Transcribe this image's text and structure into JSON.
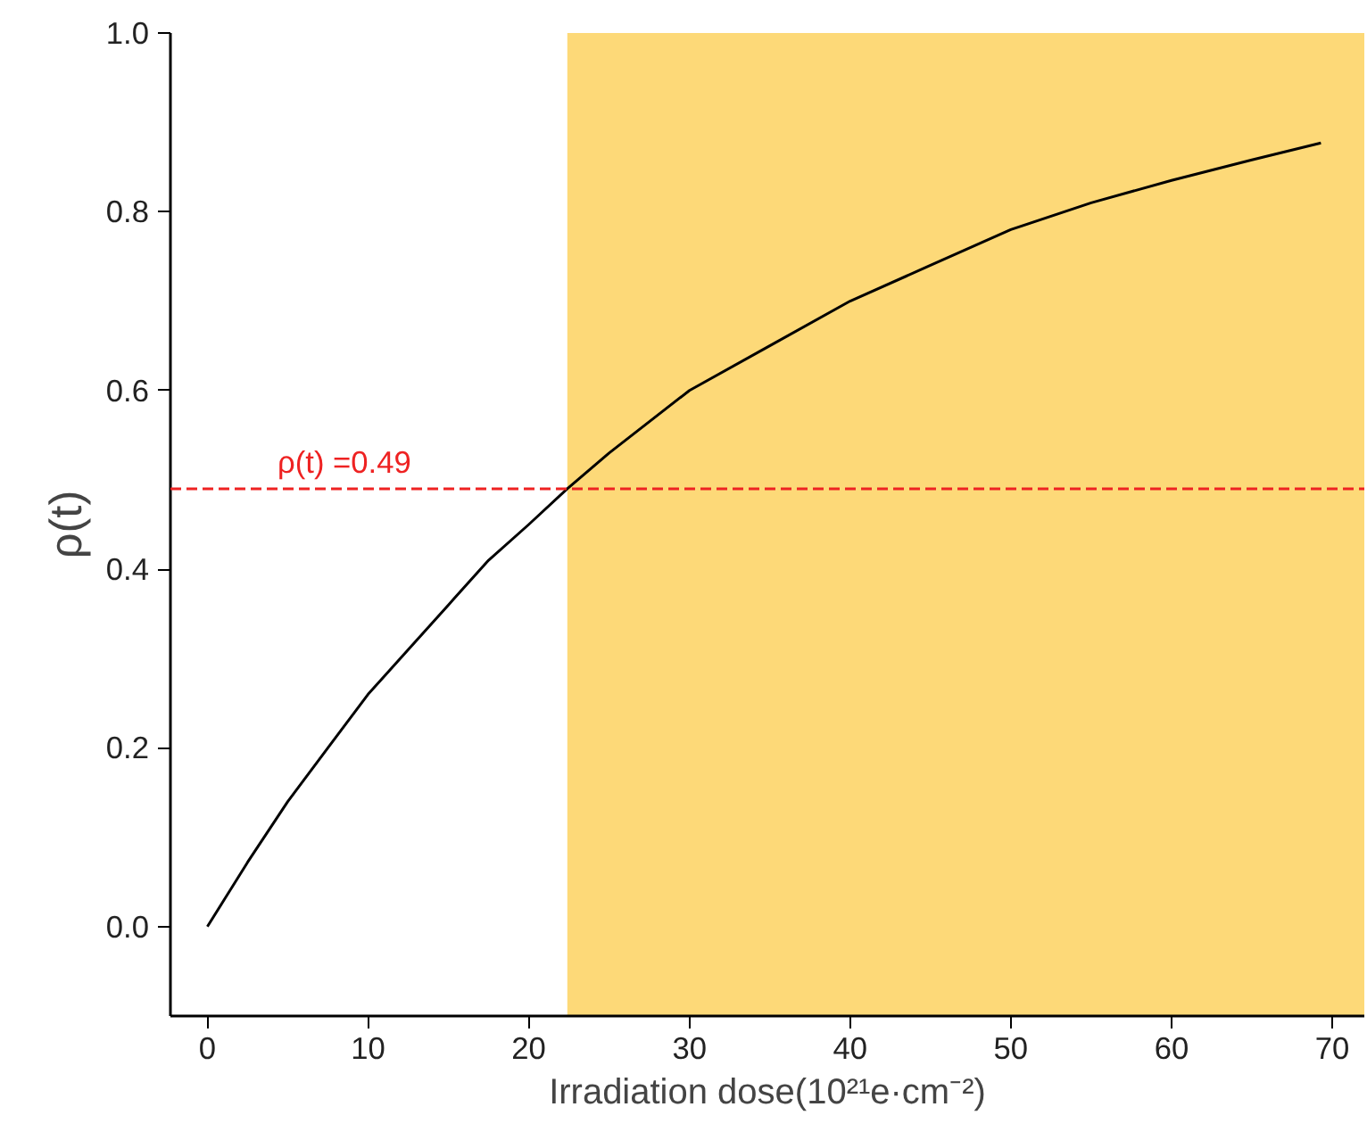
{
  "chart_data": {
    "type": "line",
    "xlabel": "Irradiation dose(10²¹e·cm⁻²)",
    "ylabel": "ρ(t)",
    "x": [
      0,
      2.5,
      5,
      7.5,
      10,
      12.5,
      15,
      17.5,
      20,
      22.4,
      25,
      30,
      35,
      40,
      45,
      50,
      55,
      60,
      65,
      69.3
    ],
    "series": [
      {
        "color": "#000000",
        "values": [
          0,
          0.072,
          0.14,
          0.2,
          0.26,
          0.31,
          0.36,
          0.41,
          0.45,
          0.49,
          0.53,
          0.6,
          0.65,
          0.7,
          0.74,
          0.78,
          0.81,
          0.835,
          0.858,
          0.877
        ]
      }
    ],
    "xlim": [
      -2.3,
      72
    ],
    "ylim": [
      -0.1,
      1.0
    ],
    "xticks": [
      0,
      10,
      20,
      30,
      40,
      50,
      60,
      70
    ],
    "yticks": [
      {
        "value": 0,
        "label": "0.0"
      },
      {
        "value": 0.2,
        "label": "0.2"
      },
      {
        "value": 0.4,
        "label": "0.4"
      },
      {
        "value": 0.6,
        "label": "0.6"
      },
      {
        "value": 0.8,
        "label": "0.8"
      },
      {
        "value": 1.0,
        "label": "1.0"
      }
    ],
    "ref_lines": [
      {
        "axis": "y",
        "value": 0.49,
        "label": "ρ(t) =0.49",
        "color": "#ee2222",
        "line_style": "dashed"
      }
    ],
    "bands": [
      {
        "axis": "x",
        "from": 22.4,
        "to": 72,
        "color": "#fdd978"
      }
    ],
    "grid": false,
    "marker": "none",
    "line_style": "solid"
  }
}
